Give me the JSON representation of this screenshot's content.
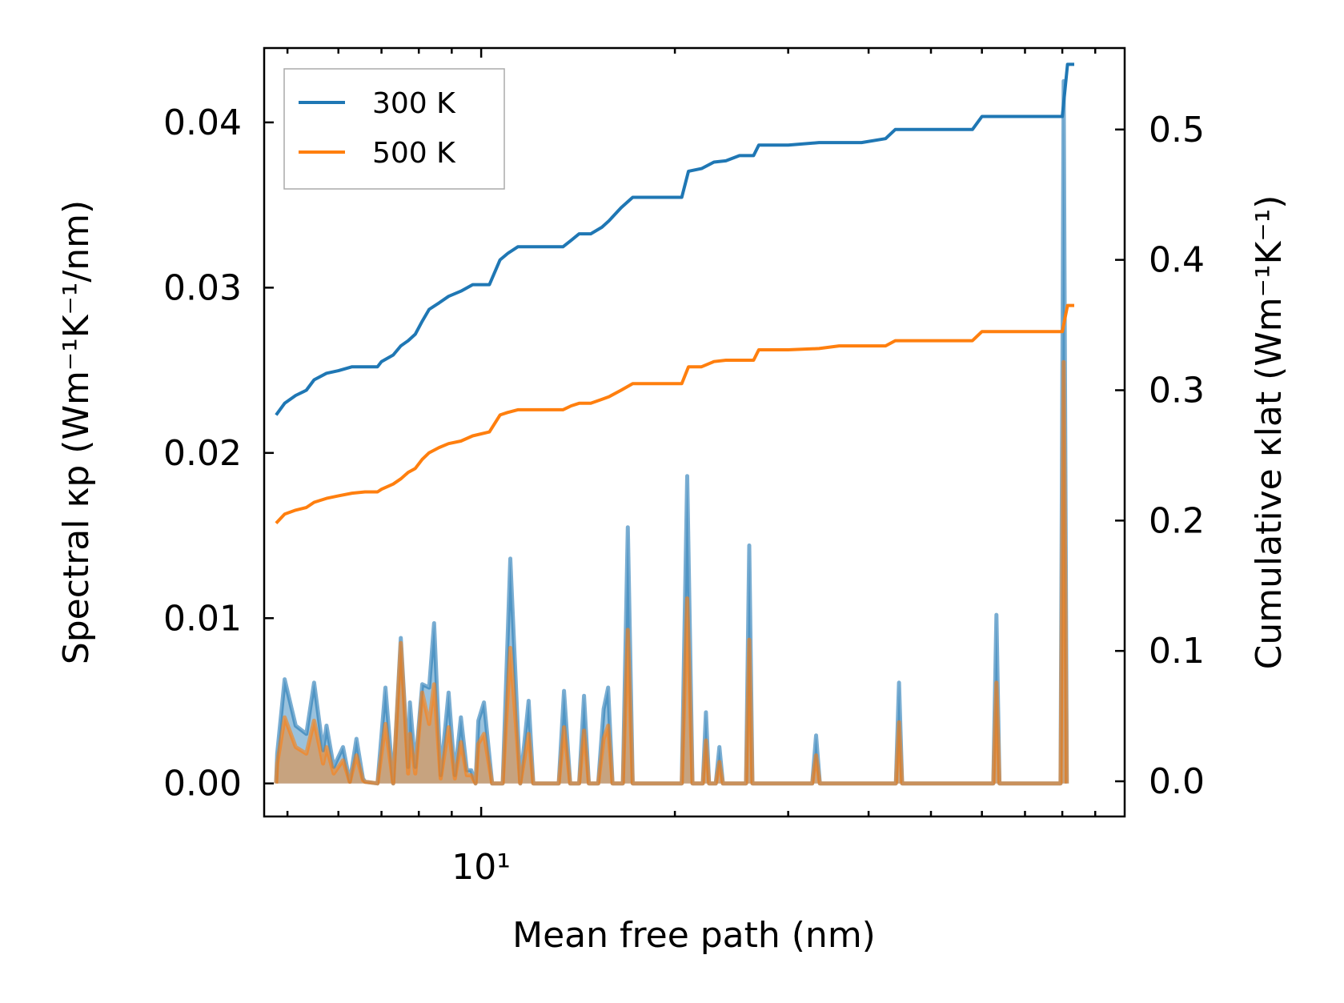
{
  "chart_data": {
    "type": "line",
    "xlabel": "Mean free path (nm)",
    "ylabel_left": "Spectral κp (Wm⁻¹K⁻¹/nm)",
    "ylabel_right": "Cumulative κlat (Wm⁻¹K⁻¹)",
    "x_scale": "log",
    "xlim": [
      4.6,
      100
    ],
    "x_tick_label": "10¹",
    "ylim_left": [
      -0.002,
      0.0445
    ],
    "ylim_right": [
      -0.027,
      0.5625
    ],
    "yticks_left": [
      "0.00",
      "0.01",
      "0.02",
      "0.03",
      "0.04"
    ],
    "yticks_right": [
      "0.0",
      "0.1",
      "0.2",
      "0.3",
      "0.4",
      "0.5"
    ],
    "legend": {
      "placement": "top-left",
      "entries": [
        {
          "name": "300 K",
          "color": "#1f77b4"
        },
        {
          "name": "500 K",
          "color": "#ff7f0e"
        }
      ]
    },
    "cumulative": [
      {
        "name": "300 K",
        "color": "#1f77b4",
        "points": [
          [
            4.8,
            0.281
          ],
          [
            4.95,
            0.29
          ],
          [
            5.15,
            0.296
          ],
          [
            5.35,
            0.3
          ],
          [
            5.5,
            0.308
          ],
          [
            5.75,
            0.313
          ],
          [
            6.0,
            0.315
          ],
          [
            6.3,
            0.318
          ],
          [
            6.6,
            0.318
          ],
          [
            6.9,
            0.318
          ],
          [
            7.0,
            0.322
          ],
          [
            7.3,
            0.327
          ],
          [
            7.5,
            0.334
          ],
          [
            7.7,
            0.338
          ],
          [
            7.9,
            0.343
          ],
          [
            8.1,
            0.353
          ],
          [
            8.3,
            0.362
          ],
          [
            8.6,
            0.367
          ],
          [
            8.9,
            0.372
          ],
          [
            9.3,
            0.376
          ],
          [
            9.7,
            0.381
          ],
          [
            10.3,
            0.381
          ],
          [
            10.7,
            0.4
          ],
          [
            11.0,
            0.405
          ],
          [
            11.4,
            0.41
          ],
          [
            12.2,
            0.41
          ],
          [
            13.4,
            0.41
          ],
          [
            13.8,
            0.415
          ],
          [
            14.2,
            0.42
          ],
          [
            14.8,
            0.42
          ],
          [
            15.4,
            0.425
          ],
          [
            15.8,
            0.43
          ],
          [
            16.5,
            0.44
          ],
          [
            17.2,
            0.448
          ],
          [
            18.4,
            0.448
          ],
          [
            20.5,
            0.448
          ],
          [
            21.0,
            0.468
          ],
          [
            22.0,
            0.47
          ],
          [
            23.0,
            0.475
          ],
          [
            24.0,
            0.476
          ],
          [
            25.2,
            0.48
          ],
          [
            26.5,
            0.48
          ],
          [
            27.0,
            0.488
          ],
          [
            30.0,
            0.488
          ],
          [
            33.5,
            0.49
          ],
          [
            36.0,
            0.49
          ],
          [
            39.0,
            0.49
          ],
          [
            42.5,
            0.493
          ],
          [
            44.0,
            0.5
          ],
          [
            50.0,
            0.5
          ],
          [
            55.0,
            0.5
          ],
          [
            58.0,
            0.5
          ],
          [
            60.0,
            0.51
          ],
          [
            65.0,
            0.51
          ],
          [
            80.0,
            0.51
          ],
          [
            81.5,
            0.55
          ],
          [
            83.5,
            0.55
          ]
        ]
      },
      {
        "name": "500 K",
        "color": "#ff7f0e",
        "points": [
          [
            4.8,
            0.198
          ],
          [
            4.95,
            0.205
          ],
          [
            5.15,
            0.208
          ],
          [
            5.35,
            0.21
          ],
          [
            5.5,
            0.214
          ],
          [
            5.75,
            0.217
          ],
          [
            6.0,
            0.219
          ],
          [
            6.3,
            0.221
          ],
          [
            6.6,
            0.222
          ],
          [
            6.9,
            0.222
          ],
          [
            7.0,
            0.224
          ],
          [
            7.3,
            0.228
          ],
          [
            7.5,
            0.232
          ],
          [
            7.7,
            0.237
          ],
          [
            7.9,
            0.24
          ],
          [
            8.1,
            0.247
          ],
          [
            8.3,
            0.252
          ],
          [
            8.6,
            0.256
          ],
          [
            8.9,
            0.259
          ],
          [
            9.3,
            0.261
          ],
          [
            9.7,
            0.265
          ],
          [
            10.3,
            0.268
          ],
          [
            10.7,
            0.281
          ],
          [
            11.0,
            0.283
          ],
          [
            11.4,
            0.285
          ],
          [
            12.2,
            0.285
          ],
          [
            13.4,
            0.285
          ],
          [
            13.8,
            0.288
          ],
          [
            14.2,
            0.29
          ],
          [
            14.8,
            0.29
          ],
          [
            15.4,
            0.293
          ],
          [
            15.8,
            0.295
          ],
          [
            16.5,
            0.3
          ],
          [
            17.2,
            0.305
          ],
          [
            18.4,
            0.305
          ],
          [
            20.5,
            0.305
          ],
          [
            21.0,
            0.318
          ],
          [
            22.0,
            0.318
          ],
          [
            23.0,
            0.322
          ],
          [
            24.0,
            0.323
          ],
          [
            25.2,
            0.323
          ],
          [
            26.5,
            0.323
          ],
          [
            27.0,
            0.331
          ],
          [
            30.0,
            0.331
          ],
          [
            33.5,
            0.332
          ],
          [
            36.0,
            0.334
          ],
          [
            39.0,
            0.334
          ],
          [
            42.5,
            0.334
          ],
          [
            44.0,
            0.338
          ],
          [
            50.0,
            0.338
          ],
          [
            55.0,
            0.338
          ],
          [
            58.0,
            0.338
          ],
          [
            60.0,
            0.345
          ],
          [
            65.0,
            0.345
          ],
          [
            80.0,
            0.345
          ],
          [
            81.5,
            0.365
          ],
          [
            83.5,
            0.365
          ]
        ]
      }
    ],
    "spectral": [
      {
        "name": "300 K",
        "color": "#1f77b4",
        "points": [
          [
            4.8,
            0.0
          ],
          [
            4.82,
            0.0018
          ],
          [
            4.95,
            0.0063
          ],
          [
            5.15,
            0.0035
          ],
          [
            5.35,
            0.003
          ],
          [
            5.5,
            0.0061
          ],
          [
            5.68,
            0.002
          ],
          [
            5.75,
            0.0035
          ],
          [
            5.9,
            0.001
          ],
          [
            6.1,
            0.0022
          ],
          [
            6.25,
            0.0001
          ],
          [
            6.4,
            0.0027
          ],
          [
            6.55,
            0.0003
          ],
          [
            6.6,
            0.0001
          ],
          [
            6.9,
            0.0
          ],
          [
            7.1,
            0.0058
          ],
          [
            7.3,
            0.0
          ],
          [
            7.5,
            0.0088
          ],
          [
            7.7,
            0.001
          ],
          [
            7.75,
            0.0049
          ],
          [
            7.9,
            0.001
          ],
          [
            8.1,
            0.006
          ],
          [
            8.3,
            0.0058
          ],
          [
            8.45,
            0.0097
          ],
          [
            8.65,
            0.0005
          ],
          [
            8.9,
            0.0055
          ],
          [
            9.1,
            0.0005
          ],
          [
            9.3,
            0.004
          ],
          [
            9.5,
            0.0008
          ],
          [
            9.65,
            0.0008
          ],
          [
            9.8,
            0.0
          ],
          [
            9.9,
            0.0038
          ],
          [
            10.1,
            0.0049
          ],
          [
            10.4,
            0.0
          ],
          [
            10.8,
            0.0
          ],
          [
            11.1,
            0.0136
          ],
          [
            11.5,
            0.0
          ],
          [
            11.85,
            0.005
          ],
          [
            12.05,
            0.0
          ],
          [
            13.2,
            0.0
          ],
          [
            13.45,
            0.0056
          ],
          [
            13.75,
            0.0
          ],
          [
            14.2,
            0.0
          ],
          [
            14.45,
            0.0053
          ],
          [
            14.7,
            0.0
          ],
          [
            15.2,
            0.0
          ],
          [
            15.5,
            0.0045
          ],
          [
            15.75,
            0.0058
          ],
          [
            16.0,
            0.0
          ],
          [
            16.6,
            0.0
          ],
          [
            16.9,
            0.0155
          ],
          [
            17.2,
            0.0
          ],
          [
            20.5,
            0.0
          ],
          [
            20.9,
            0.0186
          ],
          [
            21.3,
            0.0
          ],
          [
            22.1,
            0.0
          ],
          [
            22.35,
            0.0043
          ],
          [
            22.6,
            0.0
          ],
          [
            23.15,
            0.0
          ],
          [
            23.45,
            0.0022
          ],
          [
            23.75,
            0.0
          ],
          [
            25.8,
            0.0
          ],
          [
            26.1,
            0.0144
          ],
          [
            26.4,
            0.0
          ],
          [
            32.7,
            0.0
          ],
          [
            33.15,
            0.0029
          ],
          [
            33.6,
            0.0
          ],
          [
            44.1,
            0.0
          ],
          [
            44.6,
            0.0061
          ],
          [
            45.1,
            0.0
          ],
          [
            62.5,
            0.0
          ],
          [
            63.2,
            0.0102
          ],
          [
            63.9,
            0.0
          ],
          [
            79.5,
            0.0
          ],
          [
            80.4,
            0.0425
          ],
          [
            81.3,
            0.0
          ]
        ]
      },
      {
        "name": "500 K",
        "color": "#ff7f0e",
        "points": [
          [
            4.8,
            0.0
          ],
          [
            4.82,
            0.0012
          ],
          [
            4.95,
            0.004
          ],
          [
            5.15,
            0.0022
          ],
          [
            5.35,
            0.0018
          ],
          [
            5.5,
            0.0038
          ],
          [
            5.68,
            0.0012
          ],
          [
            5.75,
            0.0022
          ],
          [
            5.9,
            0.0006
          ],
          [
            6.1,
            0.0014
          ],
          [
            6.25,
            0.0001
          ],
          [
            6.4,
            0.0017
          ],
          [
            6.55,
            0.0002
          ],
          [
            6.6,
            0.0001
          ],
          [
            6.9,
            0.0
          ],
          [
            7.1,
            0.0036
          ],
          [
            7.3,
            0.0
          ],
          [
            7.5,
            0.0085
          ],
          [
            7.7,
            0.0006
          ],
          [
            7.75,
            0.003
          ],
          [
            7.9,
            0.0006
          ],
          [
            8.1,
            0.0055
          ],
          [
            8.3,
            0.0036
          ],
          [
            8.45,
            0.006
          ],
          [
            8.65,
            0.0003
          ],
          [
            8.9,
            0.0034
          ],
          [
            9.1,
            0.0003
          ],
          [
            9.3,
            0.0025
          ],
          [
            9.5,
            0.0005
          ],
          [
            9.65,
            0.0005
          ],
          [
            9.8,
            0.0
          ],
          [
            9.9,
            0.0024
          ],
          [
            10.1,
            0.003
          ],
          [
            10.4,
            0.0
          ],
          [
            10.8,
            0.0
          ],
          [
            11.1,
            0.0082
          ],
          [
            11.5,
            0.0
          ],
          [
            11.85,
            0.003
          ],
          [
            12.05,
            0.0
          ],
          [
            13.2,
            0.0
          ],
          [
            13.45,
            0.0034
          ],
          [
            13.75,
            0.0
          ],
          [
            14.2,
            0.0
          ],
          [
            14.45,
            0.0032
          ],
          [
            14.7,
            0.0
          ],
          [
            15.2,
            0.0
          ],
          [
            15.5,
            0.0027
          ],
          [
            15.75,
            0.0035
          ],
          [
            16.0,
            0.0
          ],
          [
            16.6,
            0.0
          ],
          [
            16.9,
            0.0093
          ],
          [
            17.2,
            0.0
          ],
          [
            20.5,
            0.0
          ],
          [
            20.9,
            0.0112
          ],
          [
            21.3,
            0.0
          ],
          [
            22.1,
            0.0
          ],
          [
            22.35,
            0.0026
          ],
          [
            22.6,
            0.0
          ],
          [
            23.15,
            0.0
          ],
          [
            23.45,
            0.0013
          ],
          [
            23.75,
            0.0
          ],
          [
            25.8,
            0.0
          ],
          [
            26.1,
            0.0087
          ],
          [
            26.4,
            0.0
          ],
          [
            32.7,
            0.0
          ],
          [
            33.15,
            0.0017
          ],
          [
            33.6,
            0.0
          ],
          [
            44.1,
            0.0
          ],
          [
            44.6,
            0.0037
          ],
          [
            45.1,
            0.0
          ],
          [
            62.5,
            0.0
          ],
          [
            63.2,
            0.0061
          ],
          [
            63.9,
            0.0
          ],
          [
            79.5,
            0.0
          ],
          [
            80.4,
            0.0255
          ],
          [
            81.3,
            0.0
          ]
        ]
      }
    ]
  }
}
